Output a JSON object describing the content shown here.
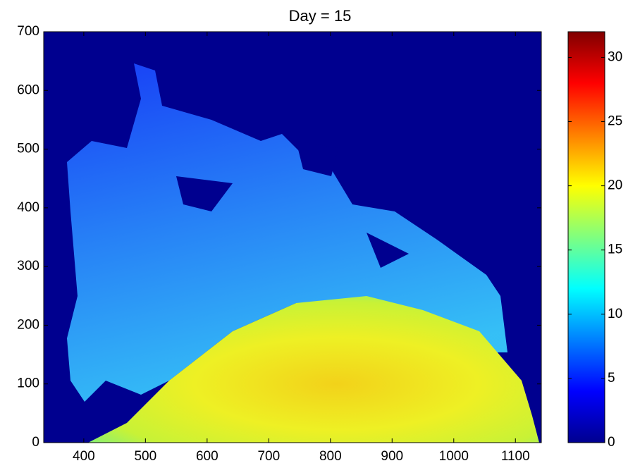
{
  "chart_data": {
    "type": "heatmap",
    "title": "Day = 15",
    "xlim": [
      335,
      1142
    ],
    "xticks": [
      400,
      500,
      600,
      700,
      800,
      900,
      1000,
      1100
    ],
    "ylim": [
      0,
      700
    ],
    "yticks": [
      0,
      100,
      200,
      300,
      400,
      500,
      600,
      700
    ],
    "colorbar": {
      "clim": [
        0,
        32
      ],
      "ticks": [
        0,
        5,
        10,
        15,
        20,
        25,
        30
      ],
      "colormap": "jet"
    }
  }
}
